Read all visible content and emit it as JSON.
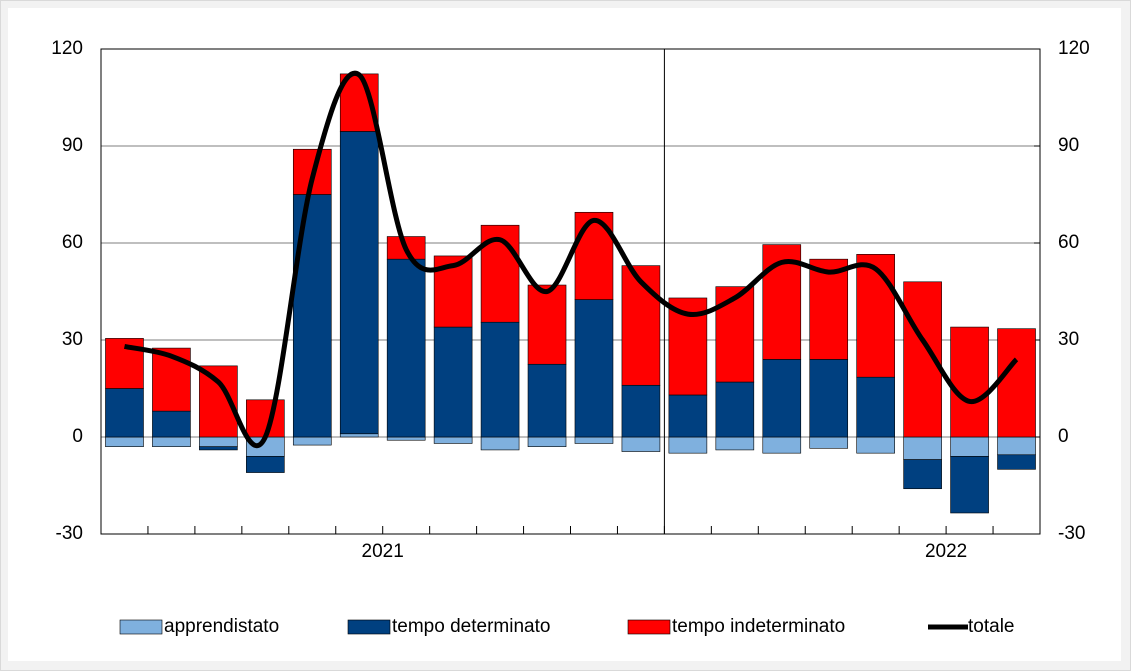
{
  "chart_data": {
    "type": "stacked-bar-line",
    "categories": [
      null,
      null,
      null,
      null,
      null,
      null,
      null,
      null,
      null,
      null,
      null,
      null,
      null,
      null,
      null,
      null,
      null,
      null,
      null,
      null
    ],
    "year_labels": [
      "2021",
      "2022"
    ],
    "series": [
      {
        "name": "apprendistato",
        "color": "#7fb0de",
        "values": [
          -3,
          -3,
          -3,
          -6,
          -2.5,
          1,
          -1,
          -2,
          -4,
          -3,
          -2,
          -4.5,
          -5,
          -4,
          -5,
          -3.5,
          -5,
          -7,
          -6,
          -5.5
        ]
      },
      {
        "name": "tempo determinato",
        "color": "#004080",
        "values": [
          15,
          8,
          -1,
          -5,
          75,
          93.5,
          55,
          34,
          35.5,
          22.5,
          42.5,
          16,
          13,
          17,
          24,
          24,
          18.5,
          -9,
          -17.5,
          -4.5
        ]
      },
      {
        "name": "tempo indeterminato",
        "color": "#ff0000",
        "values": [
          15.5,
          19.5,
          22,
          11.5,
          14,
          17.8,
          7,
          22,
          30,
          24.5,
          27,
          37,
          30,
          29.5,
          35.5,
          31,
          38,
          48,
          34,
          33.5
        ]
      },
      {
        "name": "totale",
        "color": "#000000",
        "line": true,
        "values": [
          28,
          25,
          17,
          0,
          80,
          112,
          58,
          53,
          61,
          45,
          67,
          48,
          38,
          43,
          54,
          51,
          52,
          30,
          11,
          24
        ]
      }
    ],
    "ylim": [
      -30,
      120
    ],
    "yticks": [
      -30,
      0,
      30,
      60,
      90,
      120
    ],
    "y2lim": [
      -30,
      120
    ],
    "y2ticks": [
      -30,
      0,
      30,
      60,
      90,
      120
    ],
    "grid": true
  }
}
